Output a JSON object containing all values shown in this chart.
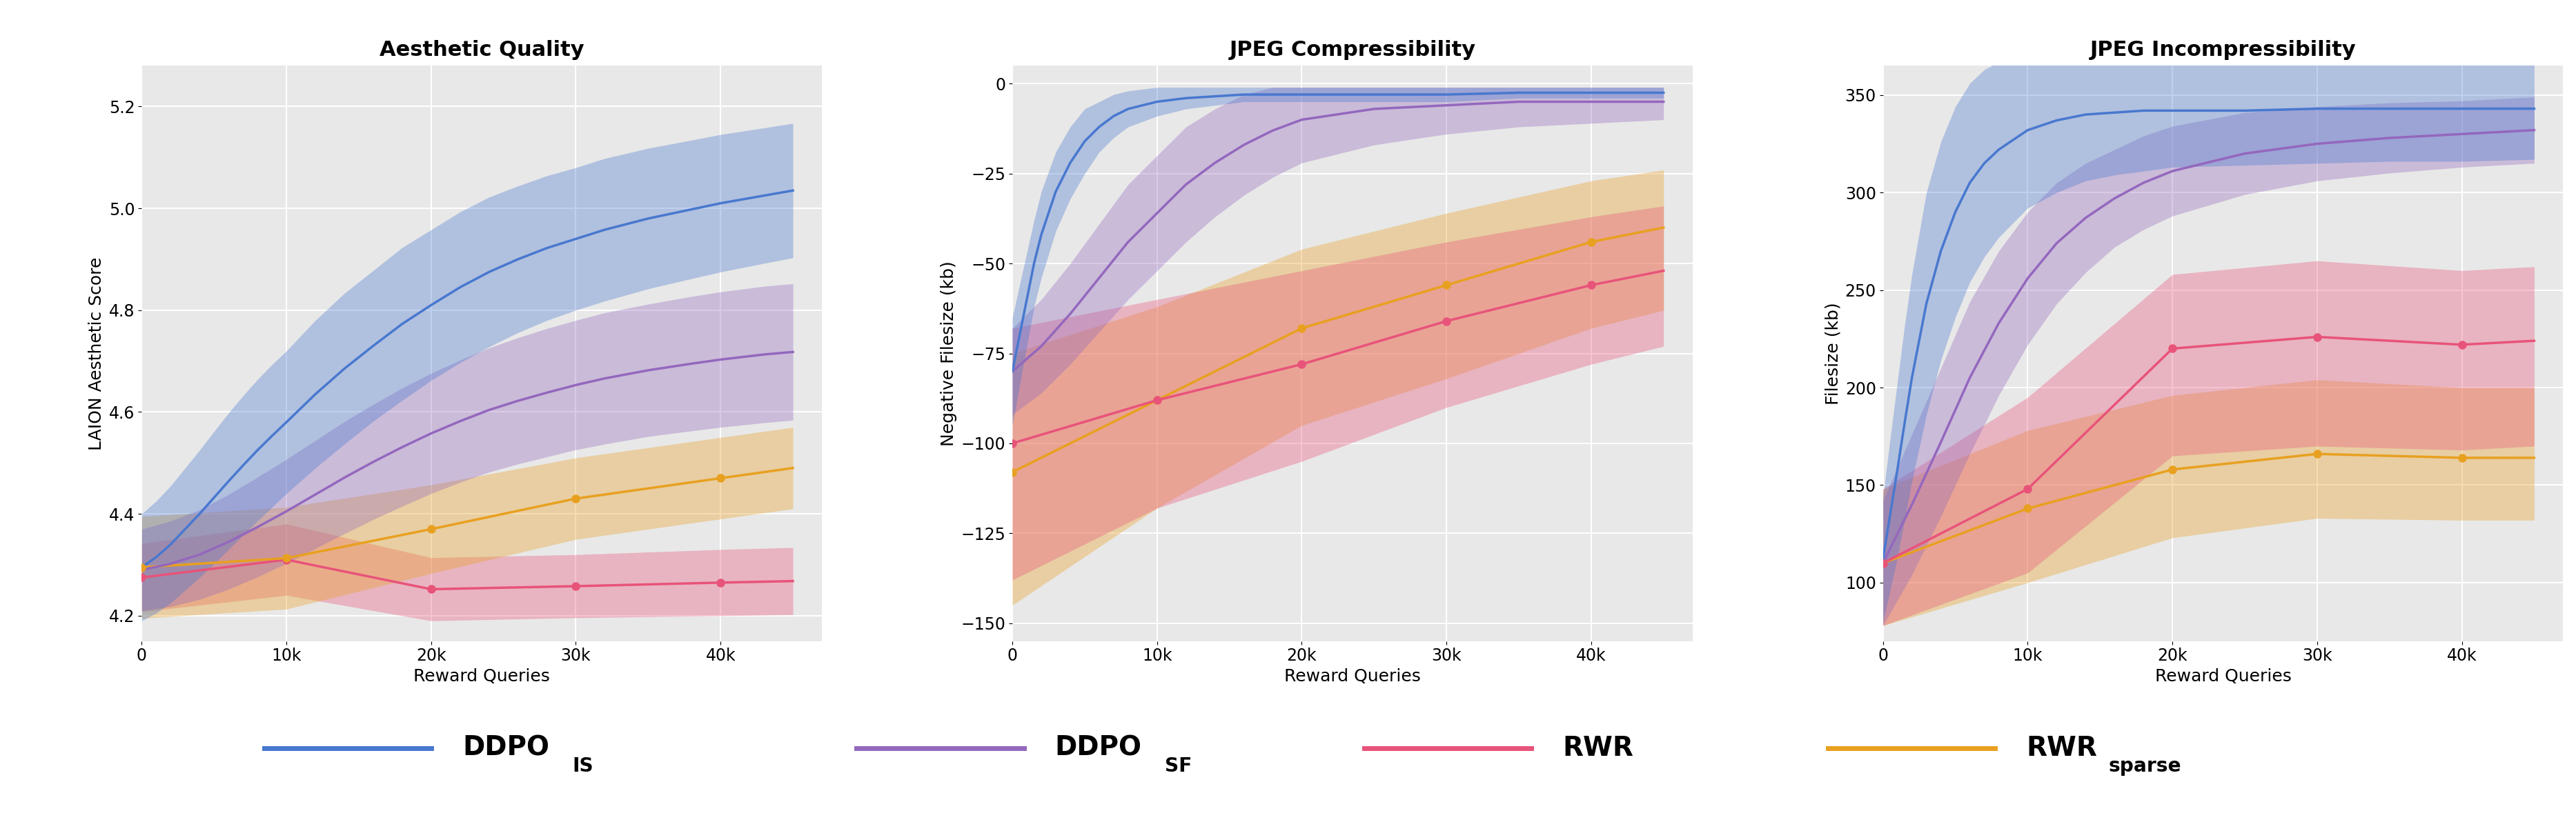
{
  "titles": [
    "Aesthetic Quality",
    "JPEG Compressibility",
    "JPEG Incompressibility"
  ],
  "ylabels": [
    "LAION Aesthetic Score",
    "Negative Filesize (kb)",
    "Filesize (kb)"
  ],
  "xlabel": "Reward Queries",
  "xlim": [
    0,
    47000
  ],
  "xticks": [
    0,
    10000,
    20000,
    30000,
    40000
  ],
  "xticklabels": [
    "0",
    "10k",
    "20k",
    "30k",
    "40k"
  ],
  "background_color": "#e8e8e8",
  "figure_background": "#ffffff",
  "plots": [
    {
      "ylim": [
        4.15,
        5.28
      ],
      "yticks": [
        4.2,
        4.4,
        4.6,
        4.8,
        5.0,
        5.2
      ],
      "series": [
        {
          "name": "DDPO_IS",
          "color": "#4878CF",
          "x": [
            0,
            1000,
            2000,
            3000,
            4000,
            5000,
            6000,
            7000,
            8000,
            9000,
            10000,
            12000,
            14000,
            16000,
            18000,
            20000,
            22000,
            24000,
            26000,
            28000,
            30000,
            32000,
            35000,
            38000,
            40000,
            43000,
            45000
          ],
          "y": [
            4.295,
            4.315,
            4.34,
            4.37,
            4.4,
            4.432,
            4.464,
            4.495,
            4.525,
            4.553,
            4.58,
            4.635,
            4.685,
            4.73,
            4.773,
            4.81,
            4.845,
            4.875,
            4.9,
            4.922,
            4.94,
            4.958,
            4.98,
            4.998,
            5.01,
            5.025,
            5.035
          ],
          "y_lower": [
            4.19,
            4.205,
            4.225,
            4.25,
            4.275,
            4.302,
            4.33,
            4.358,
            4.386,
            4.413,
            4.44,
            4.49,
            4.537,
            4.582,
            4.623,
            4.662,
            4.697,
            4.728,
            4.756,
            4.78,
            4.8,
            4.818,
            4.842,
            4.862,
            4.875,
            4.892,
            4.903
          ],
          "y_upper": [
            4.4,
            4.425,
            4.455,
            4.49,
            4.525,
            4.562,
            4.598,
            4.632,
            4.664,
            4.693,
            4.72,
            4.78,
            4.833,
            4.878,
            4.923,
            4.958,
            4.993,
            5.022,
            5.044,
            5.064,
            5.08,
            5.098,
            5.118,
            5.134,
            5.145,
            5.158,
            5.167
          ],
          "markers": [],
          "linewidth": 2.5
        },
        {
          "name": "DDPO_SF",
          "color": "#9467bd",
          "x": [
            0,
            2000,
            4000,
            6000,
            8000,
            10000,
            12000,
            14000,
            16000,
            18000,
            20000,
            22000,
            24000,
            26000,
            28000,
            30000,
            32000,
            35000,
            38000,
            40000,
            43000,
            45000
          ],
          "y": [
            4.29,
            4.302,
            4.32,
            4.345,
            4.374,
            4.405,
            4.438,
            4.471,
            4.502,
            4.531,
            4.558,
            4.582,
            4.604,
            4.622,
            4.638,
            4.653,
            4.666,
            4.682,
            4.695,
            4.703,
            4.713,
            4.718
          ],
          "y_lower": [
            4.21,
            4.218,
            4.232,
            4.252,
            4.276,
            4.303,
            4.332,
            4.361,
            4.389,
            4.415,
            4.44,
            4.462,
            4.482,
            4.498,
            4.512,
            4.526,
            4.537,
            4.552,
            4.563,
            4.57,
            4.579,
            4.584
          ],
          "y_upper": [
            4.37,
            4.386,
            4.408,
            4.438,
            4.472,
            4.507,
            4.544,
            4.581,
            4.615,
            4.647,
            4.676,
            4.702,
            4.726,
            4.746,
            4.764,
            4.78,
            4.795,
            4.812,
            4.827,
            4.836,
            4.847,
            4.852
          ],
          "markers": [],
          "linewidth": 2.5
        },
        {
          "name": "RWR_sparse",
          "color": "#e8a020",
          "x": [
            0,
            10000,
            20000,
            30000,
            40000,
            45000
          ],
          "y": [
            4.295,
            4.313,
            4.37,
            4.43,
            4.47,
            4.49
          ],
          "y_lower": [
            4.195,
            4.213,
            4.283,
            4.35,
            4.39,
            4.41
          ],
          "y_upper": [
            4.395,
            4.413,
            4.457,
            4.51,
            4.55,
            4.57
          ],
          "markers": [
            0,
            10000,
            20000,
            30000,
            40000
          ],
          "linewidth": 2.5
        },
        {
          "name": "RWR",
          "color": "#e8537a",
          "x": [
            0,
            10000,
            20000,
            30000,
            40000,
            45000
          ],
          "y": [
            4.275,
            4.31,
            4.252,
            4.258,
            4.265,
            4.268
          ],
          "y_lower": [
            4.208,
            4.24,
            4.19,
            4.196,
            4.2,
            4.202
          ],
          "y_upper": [
            4.342,
            4.38,
            4.314,
            4.32,
            4.33,
            4.334
          ],
          "markers": [
            0,
            10000,
            20000,
            30000,
            40000
          ],
          "linewidth": 2.5
        }
      ]
    },
    {
      "ylim": [
        -155,
        5
      ],
      "yticks": [
        0,
        -25,
        -50,
        -75,
        -100,
        -125,
        -150
      ],
      "series": [
        {
          "name": "DDPO_IS",
          "color": "#4878CF",
          "x": [
            0,
            500,
            1000,
            1500,
            2000,
            3000,
            4000,
            5000,
            6000,
            7000,
            8000,
            10000,
            12000,
            14000,
            16000,
            18000,
            20000,
            25000,
            30000,
            35000,
            40000,
            45000
          ],
          "y": [
            -80,
            -70,
            -60,
            -50,
            -42,
            -30,
            -22,
            -16,
            -12,
            -9,
            -7,
            -5,
            -4,
            -3.5,
            -3,
            -3,
            -3,
            -3,
            -3,
            -2.5,
            -2.5,
            -2.5
          ],
          "y_lower": [
            -95,
            -84,
            -73,
            -62,
            -54,
            -41,
            -32,
            -25,
            -19,
            -15,
            -12,
            -9,
            -7,
            -6,
            -5,
            -5,
            -5,
            -5,
            -5,
            -4,
            -4,
            -4
          ],
          "y_upper": [
            -65,
            -56,
            -47,
            -38,
            -30,
            -19,
            -12,
            -7,
            -5,
            -3,
            -2,
            -1,
            -1,
            -1,
            -1,
            -1,
            -1,
            -1,
            -1,
            -1,
            -1,
            -1
          ],
          "markers": [],
          "linewidth": 2.5
        },
        {
          "name": "DDPO_SF",
          "color": "#9467bd",
          "x": [
            0,
            2000,
            4000,
            6000,
            8000,
            10000,
            12000,
            14000,
            16000,
            18000,
            20000,
            25000,
            30000,
            35000,
            40000,
            45000
          ],
          "y": [
            -80,
            -73,
            -64,
            -54,
            -44,
            -36,
            -28,
            -22,
            -17,
            -13,
            -10,
            -7,
            -6,
            -5,
            -5,
            -5
          ],
          "y_lower": [
            -92,
            -86,
            -78,
            -69,
            -60,
            -52,
            -44,
            -37,
            -31,
            -26,
            -22,
            -17,
            -14,
            -12,
            -11,
            -10
          ],
          "y_upper": [
            -68,
            -60,
            -50,
            -39,
            -28,
            -20,
            -12,
            -7,
            -3,
            -1,
            -1,
            -1,
            -1,
            -1,
            -1,
            -1
          ],
          "markers": [],
          "linewidth": 2.5
        },
        {
          "name": "RWR_sparse",
          "color": "#e8a020",
          "x": [
            0,
            10000,
            20000,
            30000,
            40000,
            45000
          ],
          "y": [
            -108,
            -88,
            -68,
            -56,
            -44,
            -40
          ],
          "y_lower": [
            -145,
            -118,
            -95,
            -82,
            -68,
            -63
          ],
          "y_upper": [
            -75,
            -62,
            -46,
            -36,
            -27,
            -24
          ],
          "markers": [
            0,
            10000,
            20000,
            30000,
            40000
          ],
          "linewidth": 2.5
        },
        {
          "name": "RWR",
          "color": "#e8537a",
          "x": [
            0,
            10000,
            20000,
            30000,
            40000,
            45000
          ],
          "y": [
            -100,
            -88,
            -78,
            -66,
            -56,
            -52
          ],
          "y_lower": [
            -138,
            -118,
            -105,
            -90,
            -78,
            -73
          ],
          "y_upper": [
            -68,
            -60,
            -52,
            -44,
            -37,
            -34
          ],
          "markers": [
            0,
            10000,
            20000,
            30000,
            40000
          ],
          "linewidth": 2.5
        }
      ]
    },
    {
      "ylim": [
        70,
        365
      ],
      "yticks": [
        100,
        150,
        200,
        250,
        300,
        350
      ],
      "series": [
        {
          "name": "DDPO_IS",
          "color": "#4878CF",
          "x": [
            0,
            500,
            1000,
            1500,
            2000,
            3000,
            4000,
            5000,
            6000,
            7000,
            8000,
            10000,
            12000,
            14000,
            16000,
            18000,
            20000,
            25000,
            30000,
            35000,
            40000,
            45000
          ],
          "y": [
            112,
            135,
            158,
            182,
            205,
            243,
            270,
            290,
            305,
            315,
            322,
            332,
            337,
            340,
            341,
            342,
            342,
            342,
            343,
            343,
            343,
            343
          ],
          "y_lower": [
            80,
            96,
            113,
            132,
            152,
            186,
            214,
            236,
            254,
            267,
            277,
            292,
            300,
            306,
            309,
            311,
            313,
            314,
            315,
            316,
            316,
            317
          ],
          "y_upper": [
            144,
            174,
            203,
            232,
            258,
            300,
            326,
            344,
            356,
            363,
            367,
            372,
            374,
            374,
            373,
            373,
            371,
            370,
            370,
            370,
            370,
            369
          ],
          "markers": [],
          "linewidth": 2.5
        },
        {
          "name": "DDPO_SF",
          "color": "#9467bd",
          "x": [
            0,
            2000,
            4000,
            6000,
            8000,
            10000,
            12000,
            14000,
            16000,
            18000,
            20000,
            25000,
            30000,
            35000,
            40000,
            45000
          ],
          "y": [
            110,
            140,
            172,
            205,
            233,
            256,
            274,
            287,
            297,
            305,
            311,
            320,
            325,
            328,
            330,
            332
          ],
          "y_lower": [
            78,
            104,
            134,
            166,
            196,
            222,
            243,
            259,
            272,
            281,
            288,
            299,
            306,
            310,
            313,
            315
          ],
          "y_upper": [
            142,
            176,
            210,
            244,
            270,
            290,
            305,
            315,
            322,
            329,
            334,
            341,
            344,
            346,
            347,
            349
          ],
          "markers": [],
          "linewidth": 2.5
        },
        {
          "name": "RWR",
          "color": "#e8537a",
          "x": [
            0,
            10000,
            20000,
            30000,
            40000,
            45000
          ],
          "y": [
            110,
            148,
            220,
            226,
            222,
            224
          ],
          "y_lower": [
            78,
            105,
            165,
            170,
            168,
            170
          ],
          "y_upper": [
            148,
            195,
            258,
            265,
            260,
            262
          ],
          "markers": [
            0,
            10000,
            20000,
            30000,
            40000
          ],
          "linewidth": 2.5
        },
        {
          "name": "RWR_sparse",
          "color": "#e8a020",
          "x": [
            0,
            10000,
            20000,
            30000,
            40000,
            45000
          ],
          "y": [
            110,
            138,
            158,
            166,
            164,
            164
          ],
          "y_lower": [
            78,
            100,
            123,
            133,
            132,
            132
          ],
          "y_upper": [
            148,
            178,
            196,
            204,
            200,
            200
          ],
          "markers": [
            0,
            10000,
            20000,
            30000,
            40000
          ],
          "linewidth": 2.5
        }
      ]
    }
  ],
  "legend_entries": [
    {
      "label": "DDPO",
      "subscript": "IS",
      "color": "#4878CF"
    },
    {
      "label": "DDPO",
      "subscript": "SF",
      "color": "#9467bd"
    },
    {
      "label": "RWR",
      "subscript": "",
      "color": "#e8537a"
    },
    {
      "label": "RWR",
      "subscript": "sparse",
      "color": "#e8a020"
    }
  ],
  "title_fontsize": 22,
  "label_fontsize": 18,
  "tick_fontsize": 17,
  "legend_fontsize": 28
}
